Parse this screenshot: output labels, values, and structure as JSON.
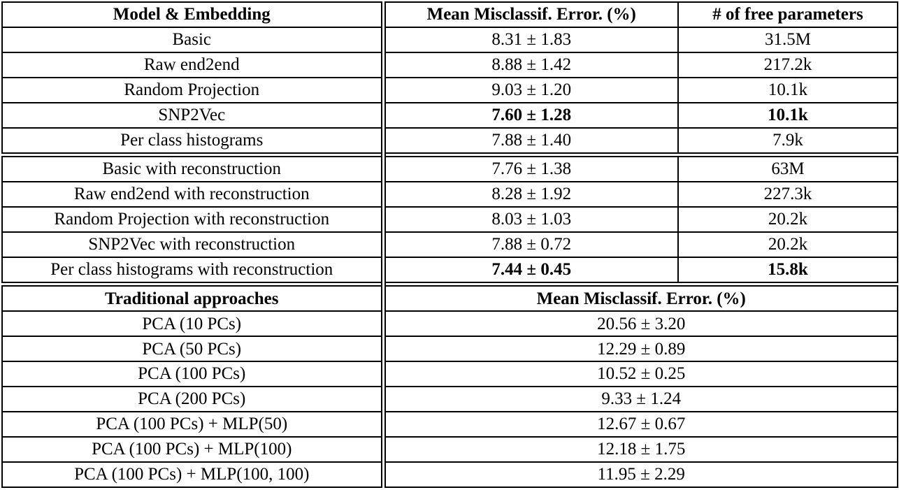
{
  "colors": {
    "background": "#ffffff",
    "border": "#000000",
    "text": "#000000"
  },
  "table": {
    "columns": {
      "model": "Model & Embedding",
      "error": "Mean Misclassif. Error. (%)",
      "params": "# of free parameters"
    },
    "sections": [
      {
        "rows": [
          {
            "model": "Basic",
            "error": "8.31 ± 1.83",
            "params": "31.5M"
          },
          {
            "model": "Raw end2end",
            "error": "8.88 ± 1.42",
            "params": "217.2k"
          },
          {
            "model": "Random Projection",
            "error": "9.03 ± 1.20",
            "params": "10.1k"
          },
          {
            "model": "SNP2Vec",
            "error": "7.60 ± 1.28",
            "params": "10.1k",
            "bold": true
          },
          {
            "model": "Per class histograms",
            "error": "7.88 ± 1.40",
            "params": "7.9k"
          }
        ]
      },
      {
        "rows": [
          {
            "model": "Basic with reconstruction",
            "error": "7.76 ± 1.38",
            "params": "63M"
          },
          {
            "model": "Raw end2end with reconstruction",
            "error": "8.28 ± 1.92",
            "params": "227.3k"
          },
          {
            "model": "Random Projection with reconstruction",
            "error": "8.03 ± 1.03",
            "params": "20.2k"
          },
          {
            "model": "SNP2Vec with reconstruction",
            "error": "7.88 ± 0.72",
            "params": "20.2k"
          },
          {
            "model": "Per class histograms with reconstruction",
            "error": "7.44 ± 0.45",
            "params": "15.8k",
            "bold": true
          }
        ]
      },
      {
        "headers": {
          "model": "Traditional approaches",
          "error": "Mean Misclassif. Error. (%)"
        },
        "rows": [
          {
            "model": "PCA (10 PCs)",
            "error": "20.56 ± 3.20"
          },
          {
            "model": "PCA (50 PCs)",
            "error": "12.29 ± 0.89"
          },
          {
            "model": "PCA (100 PCs)",
            "error": "10.52 ± 0.25"
          },
          {
            "model": "PCA (200 PCs)",
            "error": "9.33 ± 1.24"
          },
          {
            "model": "PCA (100 PCs) + MLP(50)",
            "error": "12.67 ± 0.67"
          },
          {
            "model": "PCA (100 PCs) + MLP(100)",
            "error": "12.18 ± 1.75"
          },
          {
            "model": "PCA (100 PCs) + MLP(100, 100)",
            "error": "11.95 ± 2.29"
          }
        ]
      }
    ]
  }
}
